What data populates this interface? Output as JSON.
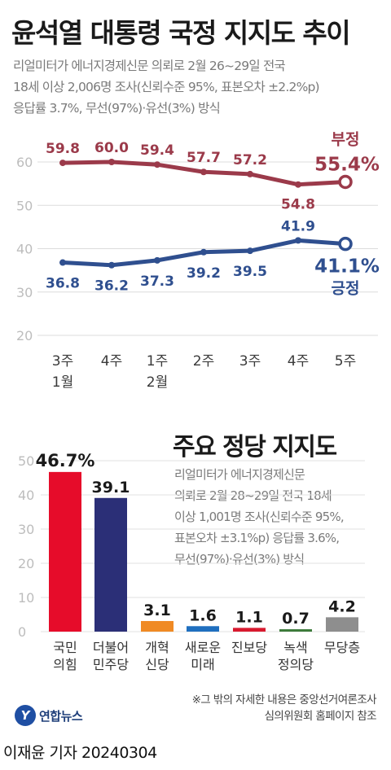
{
  "header": {
    "title": "윤석열 대통령 국정 지지도 추이",
    "note_lines": [
      "리얼미터가 에너지경제신문 의뢰로 2월 26~29일 전국",
      "18세 이상 2,006명 조사(신뢰수준 95%, 표본오차 ±2.2%p)",
      "응답률 3.7%, 무선(97%)·유선(3%) 방식"
    ]
  },
  "chart_data": [
    {
      "type": "line",
      "title": "윤석열 대통령 국정 지지도 추이",
      "x": [
        "3주|1월",
        "4주",
        "1주|2월",
        "2주",
        "3주",
        "4주",
        "5주"
      ],
      "y_ticks": [
        20,
        30,
        40,
        50,
        60
      ],
      "ylim": [
        20,
        60
      ],
      "series": [
        {
          "name": "부정",
          "color": "#9b3a4a",
          "values": [
            59.8,
            60.0,
            59.4,
            57.7,
            57.2,
            54.8,
            55.4
          ],
          "labels": [
            "59.8",
            "60.0",
            "59.4",
            "57.7",
            "57.2",
            "54.8",
            "55.4%"
          ]
        },
        {
          "name": "긍정",
          "color": "#2f4f8f",
          "values": [
            36.8,
            36.2,
            37.3,
            39.2,
            39.5,
            41.9,
            41.1
          ],
          "labels": [
            "36.8",
            "36.2",
            "37.3",
            "39.2",
            "39.5",
            "41.9",
            "41.1%"
          ]
        }
      ]
    },
    {
      "type": "bar",
      "title": "주요 정당 지지도",
      "categories": [
        "국민|의힘",
        "더불어|민주당",
        "개혁|신당",
        "새로운|미래",
        "진보당",
        "녹색|정의당",
        "무당층"
      ],
      "values": [
        46.7,
        39.1,
        3.1,
        1.6,
        1.1,
        0.7,
        4.2
      ],
      "labels": [
        "46.7%",
        "39.1",
        "3.1",
        "1.6",
        "1.1",
        "0.7",
        "4.2"
      ],
      "colors": [
        "#e60c2a",
        "#2b2f77",
        "#f08a24",
        "#1f6fbf",
        "#d8192e",
        "#3c7a3a",
        "#8e8e8e"
      ],
      "y_ticks": [
        0,
        10,
        20,
        30,
        40,
        50
      ],
      "ylim": [
        0,
        50
      ]
    }
  ],
  "party_note_lines": [
    "리얼미터가 에너지경제신문",
    "의뢰로 2월 28~29일 전국 18세",
    "이상 1,001명 조사(신뢰수준 95%,",
    "표본오차 ±3.1%p) 응답률 3.6%,",
    "무선(97%)·유선(3%) 방식"
  ],
  "footnote_lines": [
    "※그 밖의 자세한 내용은 중앙선거여론조사",
    "심의위원회 홈페이지 참조"
  ],
  "logo": {
    "mark": "Y",
    "text": "연합뉴스"
  },
  "byline": "이재윤 기자  20240304"
}
